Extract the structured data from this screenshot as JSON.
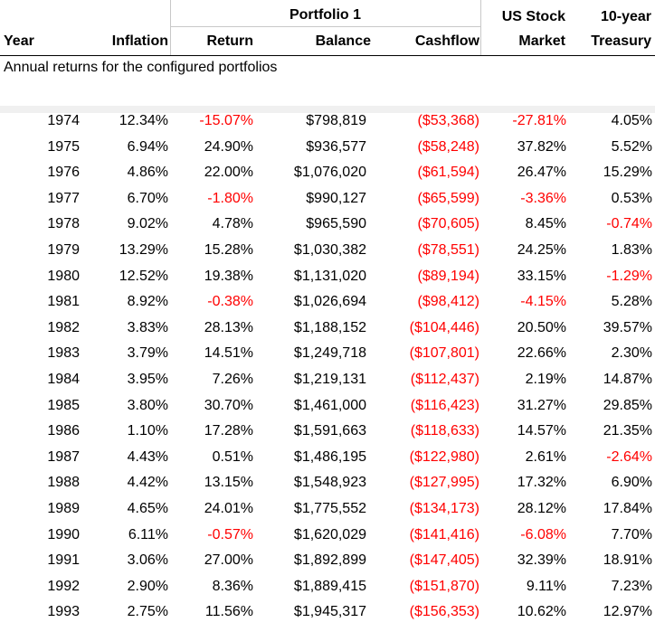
{
  "header": {
    "group_label": "Portfolio 1",
    "year": "Year",
    "inflation": "Inflation",
    "return": "Return",
    "balance": "Balance",
    "cashflow": "Cashflow",
    "us_stock_line1": "US Stock",
    "us_stock_line2": "Market",
    "treasury_line1": "10-year",
    "treasury_line2": "Treasury"
  },
  "caption": "Annual returns for the configured portfolios",
  "colors": {
    "negative": "#ff0000",
    "text": "#000000",
    "grid": "#c8c8c8"
  },
  "rows": [
    {
      "year": "1974",
      "inflation": "12.34%",
      "return": "-15.07%",
      "balance": "$798,819",
      "cashflow": "($53,368)",
      "us_stock": "-27.81%",
      "treasury": "4.05%"
    },
    {
      "year": "1975",
      "inflation": "6.94%",
      "return": "24.90%",
      "balance": "$936,577",
      "cashflow": "($58,248)",
      "us_stock": "37.82%",
      "treasury": "5.52%"
    },
    {
      "year": "1976",
      "inflation": "4.86%",
      "return": "22.00%",
      "balance": "$1,076,020",
      "cashflow": "($61,594)",
      "us_stock": "26.47%",
      "treasury": "15.29%"
    },
    {
      "year": "1977",
      "inflation": "6.70%",
      "return": "-1.80%",
      "balance": "$990,127",
      "cashflow": "($65,599)",
      "us_stock": "-3.36%",
      "treasury": "0.53%"
    },
    {
      "year": "1978",
      "inflation": "9.02%",
      "return": "4.78%",
      "balance": "$965,590",
      "cashflow": "($70,605)",
      "us_stock": "8.45%",
      "treasury": "-0.74%"
    },
    {
      "year": "1979",
      "inflation": "13.29%",
      "return": "15.28%",
      "balance": "$1,030,382",
      "cashflow": "($78,551)",
      "us_stock": "24.25%",
      "treasury": "1.83%"
    },
    {
      "year": "1980",
      "inflation": "12.52%",
      "return": "19.38%",
      "balance": "$1,131,020",
      "cashflow": "($89,194)",
      "us_stock": "33.15%",
      "treasury": "-1.29%"
    },
    {
      "year": "1981",
      "inflation": "8.92%",
      "return": "-0.38%",
      "balance": "$1,026,694",
      "cashflow": "($98,412)",
      "us_stock": "-4.15%",
      "treasury": "5.28%"
    },
    {
      "year": "1982",
      "inflation": "3.83%",
      "return": "28.13%",
      "balance": "$1,188,152",
      "cashflow": "($104,446)",
      "us_stock": "20.50%",
      "treasury": "39.57%"
    },
    {
      "year": "1983",
      "inflation": "3.79%",
      "return": "14.51%",
      "balance": "$1,249,718",
      "cashflow": "($107,801)",
      "us_stock": "22.66%",
      "treasury": "2.30%"
    },
    {
      "year": "1984",
      "inflation": "3.95%",
      "return": "7.26%",
      "balance": "$1,219,131",
      "cashflow": "($112,437)",
      "us_stock": "2.19%",
      "treasury": "14.87%"
    },
    {
      "year": "1985",
      "inflation": "3.80%",
      "return": "30.70%",
      "balance": "$1,461,000",
      "cashflow": "($116,423)",
      "us_stock": "31.27%",
      "treasury": "29.85%"
    },
    {
      "year": "1986",
      "inflation": "1.10%",
      "return": "17.28%",
      "balance": "$1,591,663",
      "cashflow": "($118,633)",
      "us_stock": "14.57%",
      "treasury": "21.35%"
    },
    {
      "year": "1987",
      "inflation": "4.43%",
      "return": "0.51%",
      "balance": "$1,486,195",
      "cashflow": "($122,980)",
      "us_stock": "2.61%",
      "treasury": "-2.64%"
    },
    {
      "year": "1988",
      "inflation": "4.42%",
      "return": "13.15%",
      "balance": "$1,548,923",
      "cashflow": "($127,995)",
      "us_stock": "17.32%",
      "treasury": "6.90%"
    },
    {
      "year": "1989",
      "inflation": "4.65%",
      "return": "24.01%",
      "balance": "$1,775,552",
      "cashflow": "($134,173)",
      "us_stock": "28.12%",
      "treasury": "17.84%"
    },
    {
      "year": "1990",
      "inflation": "6.11%",
      "return": "-0.57%",
      "balance": "$1,620,029",
      "cashflow": "($141,416)",
      "us_stock": "-6.08%",
      "treasury": "7.70%"
    },
    {
      "year": "1991",
      "inflation": "3.06%",
      "return": "27.00%",
      "balance": "$1,892,899",
      "cashflow": "($147,405)",
      "us_stock": "32.39%",
      "treasury": "18.91%"
    },
    {
      "year": "1992",
      "inflation": "2.90%",
      "return": "8.36%",
      "balance": "$1,889,415",
      "cashflow": "($151,870)",
      "us_stock": "9.11%",
      "treasury": "7.23%"
    },
    {
      "year": "1993",
      "inflation": "2.75%",
      "return": "11.56%",
      "balance": "$1,945,317",
      "cashflow": "($156,353)",
      "us_stock": "10.62%",
      "treasury": "12.97%"
    }
  ]
}
